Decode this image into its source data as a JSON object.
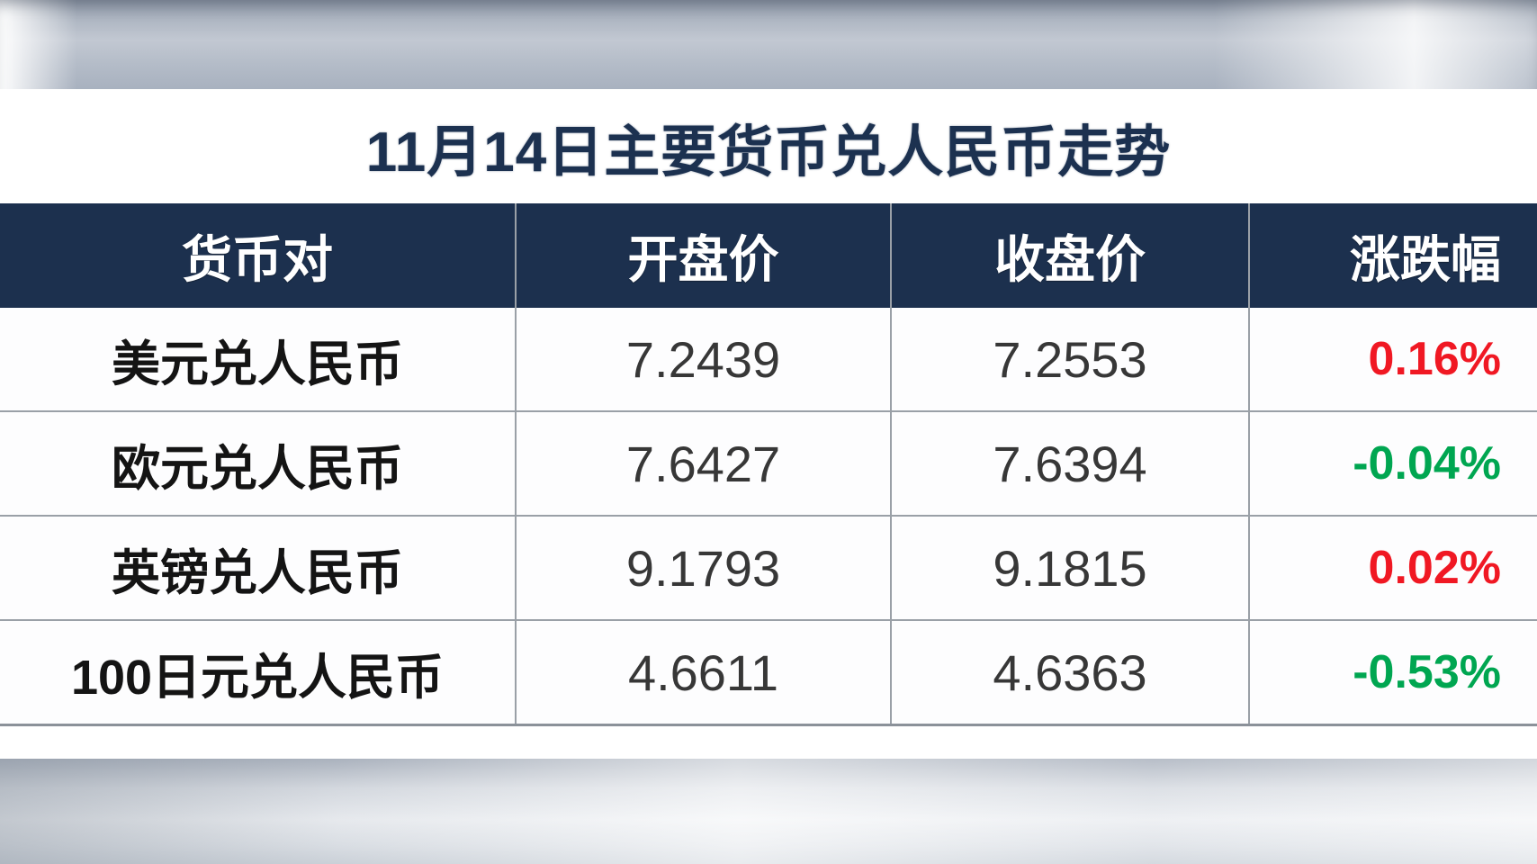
{
  "title": "11月14日主要货币兑人民币走势",
  "table": {
    "columns": [
      "货币对",
      "开盘价",
      "收盘价",
      "涨跌幅"
    ],
    "rows": [
      {
        "pair": "美元兑人民币",
        "open": "7.2439",
        "close": "7.2553",
        "change": "0.16%",
        "direction": "up"
      },
      {
        "pair": "欧元兑人民币",
        "open": "7.6427",
        "close": "7.6394",
        "change": "-0.04%",
        "direction": "down"
      },
      {
        "pair": "英镑兑人民币",
        "open": "9.1793",
        "close": "9.1815",
        "change": "0.02%",
        "direction": "up"
      },
      {
        "pair": "100日元兑人民币",
        "open": "4.6611",
        "close": "4.6363",
        "change": "-0.53%",
        "direction": "down"
      }
    ]
  },
  "colors": {
    "up": "#f01823",
    "down": "#00a651",
    "header_bg": "#1c304e",
    "header_text": "#ffffff",
    "title_text": "#1c3150",
    "grid_line": "#9aa0a7"
  },
  "chart_data": {
    "type": "table",
    "title": "11月14日主要货币兑人民币走势",
    "columns": [
      "货币对",
      "开盘价",
      "收盘价",
      "涨跌幅"
    ],
    "rows": [
      [
        "美元兑人民币",
        7.2439,
        7.2553,
        "0.16%"
      ],
      [
        "欧元兑人民币",
        7.6427,
        7.6394,
        "-0.04%"
      ],
      [
        "英镑兑人民币",
        9.1793,
        9.1815,
        "0.02%"
      ],
      [
        "100日元兑人民币",
        4.6611,
        4.6363,
        "-0.53%"
      ]
    ],
    "notes": {
      "change_color_positive": "#f01823",
      "change_color_negative": "#00a651",
      "legend_position": "none",
      "grid": "on"
    }
  }
}
